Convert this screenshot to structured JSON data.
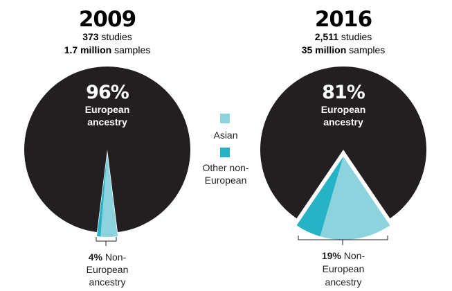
{
  "chart_data": [
    {
      "type": "pie",
      "year": "2009",
      "studies_prefix": "373",
      "studies_suffix": " studies",
      "samples_prefix": "1.7 million",
      "samples_suffix": " samples",
      "slices": [
        {
          "name": "European ancestry",
          "value": 96,
          "color": "#231f20"
        },
        {
          "name": "Asian",
          "value": 3.3,
          "color": "#8dd3dd"
        },
        {
          "name": "Other non-European",
          "value": 0.7,
          "color": "#26b3c5"
        }
      ],
      "main_pct": "96%",
      "main_label_1": "European",
      "main_label_2": "ancestry",
      "note_pct": "4%",
      "note_rest_1": " Non-",
      "note_rest_2": "European",
      "note_rest_3": "ancestry"
    },
    {
      "type": "pie",
      "year": "2016",
      "studies_prefix": "2,511",
      "studies_suffix": " studies",
      "samples_prefix": "35 million",
      "samples_suffix": " samples",
      "slices": [
        {
          "name": "European ancestry",
          "value": 81,
          "color": "#231f20"
        },
        {
          "name": "Asian",
          "value": 14,
          "color": "#8dd3dd"
        },
        {
          "name": "Other non-European",
          "value": 5,
          "color": "#26b3c5"
        }
      ],
      "main_pct": "81%",
      "main_label_1": "European",
      "main_label_2": "ancestry",
      "note_pct": "19%",
      "note_rest_1": " Non-",
      "note_rest_2": "European",
      "note_rest_3": "ancestry"
    }
  ],
  "legend": {
    "items": [
      {
        "label_lines": [
          "Asian"
        ],
        "color": "#8dd3dd"
      },
      {
        "label_lines": [
          "Other non-",
          "European"
        ],
        "color": "#26b3c5"
      }
    ]
  }
}
